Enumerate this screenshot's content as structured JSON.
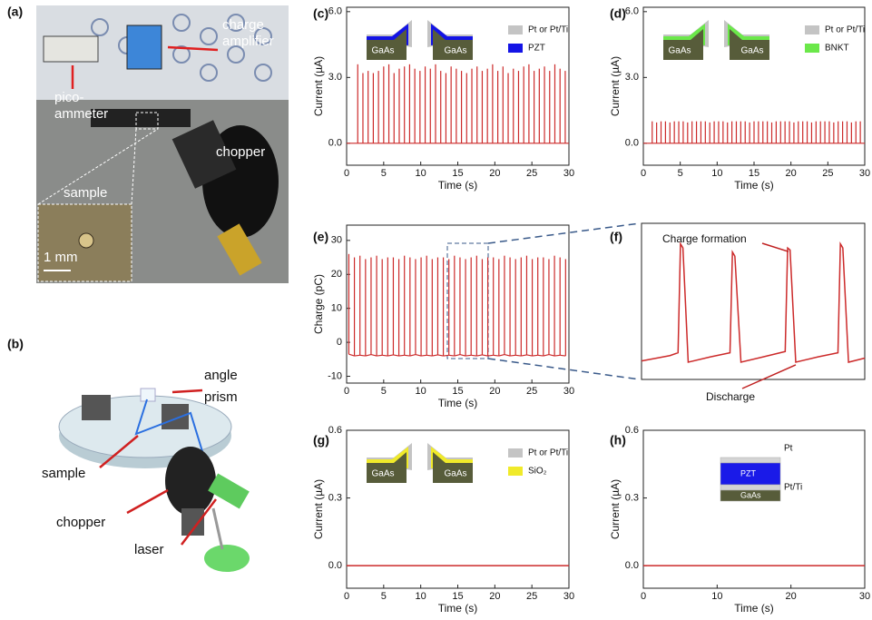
{
  "photo": {
    "label": "(a)",
    "annotations": [
      "charge",
      "amplifier",
      "pico-",
      "ammeter",
      "chopper",
      "sample",
      "1 mm"
    ]
  },
  "schematic": {
    "label": "(b)",
    "annotations": [
      "angle",
      "prism",
      "sample",
      "chopper",
      "laser"
    ]
  },
  "chart_data": [
    {
      "type": "stem",
      "panel_label": "(c)",
      "xlabel": "Time (s)",
      "ylabel": "Current (µA)",
      "color": "#cc2a2a",
      "xlim": [
        0,
        30
      ],
      "ylim": [
        -1,
        6.2
      ],
      "xticks": [
        0,
        5,
        10,
        15,
        20,
        25,
        30
      ],
      "yticks": [
        {
          "value": 0,
          "label": "0.0"
        },
        {
          "value": 3,
          "label": "3.0"
        },
        {
          "value": 6,
          "label": "6.0"
        }
      ],
      "inset_labels": [
        "GaAs",
        "GaAs"
      ],
      "substrate_color": "#575c3a",
      "legend": [
        {
          "name": "Pt or Pt/Ti",
          "color": "#c4c4c4"
        },
        {
          "name": "PZT",
          "color": "#1414e6"
        }
      ],
      "x": [
        1.5,
        2.2,
        2.9,
        3.6,
        4.3,
        5.0,
        5.7,
        6.4,
        7.1,
        7.8,
        8.5,
        9.2,
        9.9,
        10.6,
        11.3,
        12.0,
        12.7,
        13.4,
        14.1,
        14.8,
        15.5,
        16.2,
        16.9,
        17.6,
        18.3,
        19.0,
        19.7,
        20.4,
        21.1,
        21.8,
        22.5,
        23.2,
        23.9,
        24.6,
        25.3,
        26.0,
        26.7,
        27.4,
        28.1,
        28.8,
        29.5
      ],
      "values": [
        3.6,
        3.2,
        3.3,
        3.2,
        3.3,
        3.5,
        3.6,
        3.2,
        3.4,
        3.5,
        3.6,
        3.4,
        3.3,
        3.5,
        3.4,
        3.6,
        3.3,
        3.2,
        3.5,
        3.4,
        3.3,
        3.2,
        3.4,
        3.5,
        3.3,
        3.4,
        3.6,
        3.3,
        3.5,
        3.2,
        3.4,
        3.3,
        3.5,
        3.6,
        3.3,
        3.4,
        3.5,
        3.3,
        3.6,
        3.4,
        3.3
      ]
    },
    {
      "type": "stem",
      "panel_label": "(d)",
      "xlabel": "Time (s)",
      "ylabel": "Current (µA)",
      "color": "#cc2a2a",
      "xlim": [
        0,
        30
      ],
      "ylim": [
        -1,
        6.2
      ],
      "xticks": [
        0,
        5,
        10,
        15,
        20,
        25,
        30
      ],
      "yticks": [
        {
          "value": 0,
          "label": "0.0"
        },
        {
          "value": 3,
          "label": "3.0"
        },
        {
          "value": 6,
          "label": "6.0"
        }
      ],
      "inset_labels": [
        "GaAs",
        "GaAs"
      ],
      "substrate_color": "#575c3a",
      "legend": [
        {
          "name": "Pt or Pt/Ti",
          "color": "#c4c4c4"
        },
        {
          "name": "BNKT",
          "color": "#6be84a"
        }
      ],
      "x": [
        1.2,
        1.8,
        2.4,
        3.0,
        3.6,
        4.2,
        4.8,
        5.4,
        6.0,
        6.6,
        7.2,
        7.8,
        8.4,
        9.0,
        9.6,
        10.2,
        10.8,
        11.4,
        12.0,
        12.6,
        13.2,
        13.8,
        14.4,
        15.0,
        15.6,
        16.2,
        16.8,
        17.4,
        18.0,
        18.6,
        19.2,
        19.8,
        20.4,
        21.0,
        21.6,
        22.2,
        22.8,
        23.4,
        24.0,
        24.6,
        25.2,
        25.8,
        26.4,
        27.0,
        27.6,
        28.2,
        28.8,
        29.4
      ],
      "values": [
        1.0,
        0.95,
        1.0,
        1.0,
        0.95,
        1.0,
        1.0,
        1.0,
        0.95,
        1.0,
        1.0,
        1.0,
        1.0,
        0.95,
        1.0,
        1.0,
        1.0,
        0.95,
        1.0,
        1.0,
        1.0,
        1.0,
        0.95,
        1.0,
        1.0,
        1.0,
        1.0,
        0.95,
        1.0,
        1.0,
        1.0,
        1.0,
        0.95,
        1.0,
        1.0,
        1.0,
        0.95,
        1.0,
        1.0,
        1.0,
        1.0,
        0.95,
        1.0,
        1.0,
        1.0,
        0.95,
        1.0,
        1.0
      ]
    },
    {
      "type": "stem",
      "panel_label": "(e)",
      "xlabel": "Time (s)",
      "ylabel": "Charge (pC)",
      "color": "#cc2a2a",
      "xlim": [
        0,
        30
      ],
      "ylim": [
        -12,
        34.5
      ],
      "xticks": [
        0,
        5,
        10,
        15,
        20,
        25,
        30
      ],
      "yticks": [
        -10,
        0,
        10,
        20,
        30
      ],
      "x": [
        0.3,
        1.05,
        1.8,
        2.55,
        3.3,
        4.05,
        4.8,
        5.55,
        6.3,
        7.05,
        7.8,
        8.55,
        9.3,
        10.05,
        10.8,
        11.55,
        12.3,
        13.05,
        13.8,
        14.55,
        15.3,
        16.05,
        16.8,
        17.55,
        18.3,
        19.05,
        19.8,
        20.55,
        21.3,
        22.05,
        22.8,
        23.55,
        24.3,
        25.05,
        25.8,
        26.55,
        27.3,
        28.05,
        28.8,
        29.55
      ],
      "values": [
        26,
        25,
        25.5,
        24.5,
        25,
        25.5,
        24.5,
        25,
        25,
        24.5,
        25.5,
        25,
        24.5,
        25,
        25.5,
        24.5,
        25,
        25,
        24.5,
        25.5,
        25,
        24.5,
        25,
        25.5,
        24.5,
        25,
        25,
        24.5,
        25.5,
        25,
        24.5,
        25,
        25.5,
        24.5,
        25,
        25,
        24.5,
        25.5,
        25,
        24.5
      ],
      "troughs": [
        -3.5,
        -4,
        -3.8,
        -4,
        -3.6,
        -4,
        -3.8,
        -4,
        -3.7,
        -4,
        -3.8,
        -4,
        -3.6,
        -4,
        -3.8,
        -4,
        -3.7,
        -4,
        -3.8,
        -4,
        -3.6,
        -4,
        -3.8,
        -4,
        -3.7,
        -4,
        -3.8,
        -4,
        -3.6,
        -4,
        -3.8,
        -4,
        -3.7,
        -4,
        -3.8,
        -4,
        -3.6,
        -4,
        -3.8,
        -4
      ]
    },
    {
      "type": "line",
      "panel_label": "(f)",
      "color": "#cc2a2a",
      "xlim": [
        13.6,
        19.1
      ],
      "ylim": [
        -8,
        30
      ],
      "annotations": [
        "Charge formation",
        "Discharge"
      ],
      "x": [
        13.6,
        14.3,
        14.5,
        14.56,
        14.62,
        14.75,
        15.3,
        15.78,
        15.84,
        15.9,
        16.05,
        16.6,
        17.14,
        17.2,
        17.26,
        17.4,
        17.95,
        18.44,
        18.5,
        18.56,
        18.7,
        19.1
      ],
      "values": [
        -3.5,
        -2.2,
        -1.5,
        25,
        24,
        -3.8,
        -2.5,
        -1.5,
        23,
        22,
        -3.8,
        -2.5,
        -1.2,
        24,
        23.5,
        -3.8,
        -2.5,
        -1.5,
        25,
        24,
        -3.8,
        -2.8
      ]
    },
    {
      "type": "line",
      "panel_label": "(g)",
      "xlabel": "Time (s)",
      "ylabel": "Current (µA)",
      "color": "#cc2a2a",
      "xlim": [
        0,
        30
      ],
      "ylim": [
        -0.1,
        0.6
      ],
      "xticks": [
        0,
        5,
        10,
        15,
        20,
        25,
        30
      ],
      "yticks": [
        {
          "value": 0,
          "label": "0.0"
        },
        {
          "value": 0.3,
          "label": "0.3"
        },
        {
          "value": 0.6,
          "label": "0.6"
        }
      ],
      "inset_labels": [
        "GaAs",
        "GaAs"
      ],
      "substrate_color": "#575c3a",
      "legend": [
        {
          "name": "Pt or Pt/Ti",
          "color": "#c4c4c4"
        },
        {
          "name": "SiO₂",
          "color": "#f0ea2a"
        }
      ],
      "x": [
        0,
        30
      ],
      "values": [
        0,
        0
      ]
    },
    {
      "type": "line",
      "panel_label": "(h)",
      "xlabel": "Time (s)",
      "ylabel": "Current (µA)",
      "color": "#cc2a2a",
      "xlim": [
        0,
        30
      ],
      "ylim": [
        -0.1,
        0.6
      ],
      "xticks": [
        0,
        10,
        20,
        30
      ],
      "yticks": [
        {
          "value": 0,
          "label": "0.0"
        },
        {
          "value": 0.3,
          "label": "0.3"
        },
        {
          "value": 0.6,
          "label": "0.6"
        }
      ],
      "inset_layers": [
        {
          "label": "Pt",
          "color": "#d4d4d4"
        },
        {
          "label": "PZT",
          "color": "#1a1ae8"
        },
        {
          "label": "Pt/Ti",
          "color": "#d4d4d4"
        },
        {
          "label": "GaAs",
          "color": "#575c3a"
        }
      ],
      "x": [
        0,
        30
      ],
      "values": [
        0,
        0
      ]
    }
  ]
}
